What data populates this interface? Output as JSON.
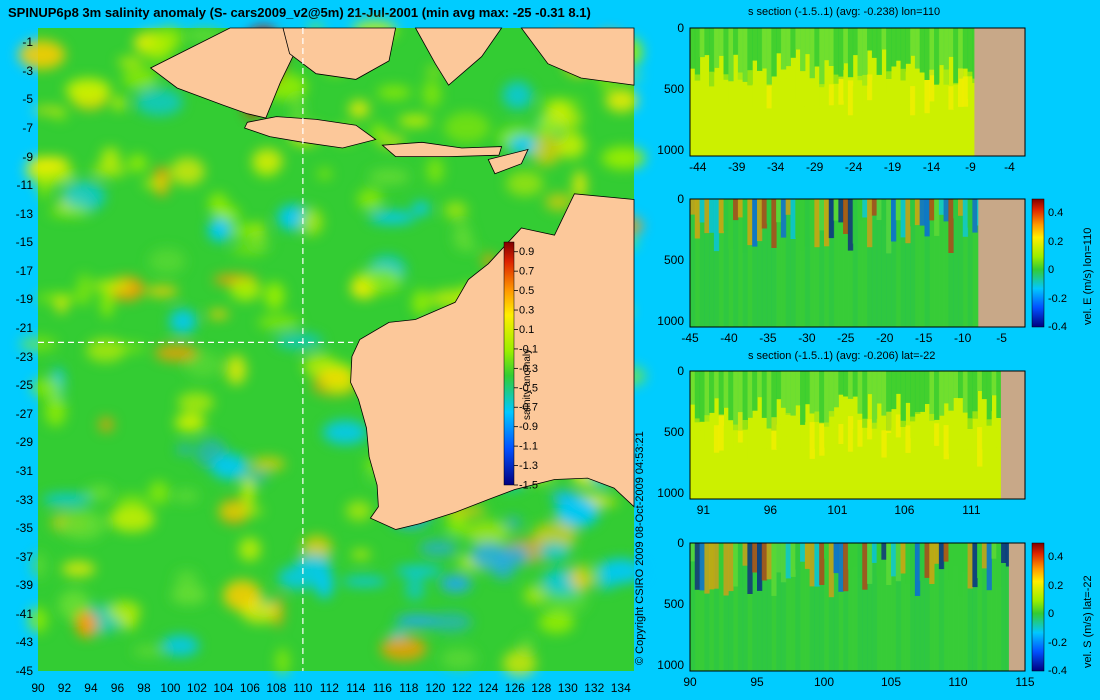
{
  "header": {
    "title": "SPINUP6p8 3m salinity anomaly (S- cars2009_v2@5m) 21-Jul-2001 (min avg max: -25 -0.31 8.1)"
  },
  "copyright": "© Copyright CSIRO 2009   08-Oct-2009 04:53:21",
  "colors": {
    "background": "#00ccff",
    "land": "#fcc89a",
    "section_land": "#c8a888",
    "ocean_base": "#33cc33",
    "crosshair": "#ffffff"
  },
  "chart_data": [
    {
      "type": "heatmap",
      "name": "map",
      "title": "SPINUP6p8 3m salinity anomaly (S- cars2009_v2@5m) 21-Jul-2001 (min avg max: -25 -0.31 8.1)",
      "xlim": [
        90,
        135
      ],
      "ylim": [
        -45,
        0
      ],
      "x_ticks": [
        "90",
        "92",
        "94",
        "96",
        "98",
        "100",
        "102",
        "104",
        "106",
        "108",
        "110",
        "112",
        "114",
        "116",
        "118",
        "120",
        "122",
        "124",
        "126",
        "128",
        "130",
        "132",
        "134"
      ],
      "y_ticks": [
        "-1",
        "-3",
        "-5",
        "-7",
        "-9",
        "-11",
        "-13",
        "-15",
        "-17",
        "-19",
        "-21",
        "-23",
        "-25",
        "-27",
        "-29",
        "-31",
        "-33",
        "-35",
        "-37",
        "-39",
        "-41",
        "-43",
        "-45"
      ],
      "crosshair": {
        "lon": 110,
        "lat": -22
      },
      "colorbar": {
        "label": "salinity anomaly",
        "range": [
          -1.5,
          1.0
        ],
        "ticks": [
          "0.9",
          "0.7",
          "0.5",
          "0.3",
          "0.1",
          "-0.1",
          "-0.3",
          "-0.5",
          "-0.7",
          "-0.9",
          "-1.1",
          "-1.3",
          "-1.5"
        ]
      }
    },
    {
      "type": "heatmap",
      "name": "salinity-section-lon110",
      "title": "s section (-1.5..1) (avg: -0.238) lon=110",
      "xlim": [
        -45,
        -2
      ],
      "ylim": [
        1050,
        0
      ],
      "x_ticks": [
        "-44",
        "-39",
        "-34",
        "-29",
        "-24",
        "-19",
        "-14",
        "-9",
        "-4"
      ],
      "y_ticks": [
        "0",
        "500",
        "1000"
      ]
    },
    {
      "type": "heatmap",
      "name": "velocity-east-lon110",
      "title": "",
      "xlim": [
        -45,
        -2
      ],
      "ylim": [
        1050,
        0
      ],
      "x_ticks": [
        "-45",
        "-40",
        "-35",
        "-30",
        "-25",
        "-20",
        "-15",
        "-10",
        "-5"
      ],
      "y_ticks": [
        "0",
        "500",
        "1000"
      ],
      "colorbar": {
        "label": "vel. E (m/s) lon=110",
        "range": [
          -0.4,
          0.5
        ],
        "ticks": [
          "0.4",
          "0.2",
          "0",
          "-0.2",
          "-0.4"
        ]
      }
    },
    {
      "type": "heatmap",
      "name": "salinity-section-lat-22",
      "title": "s section (-1.5..1) (avg: -0.206) lat=-22",
      "xlim": [
        90,
        115
      ],
      "ylim": [
        1050,
        0
      ],
      "x_ticks": [
        "91",
        "96",
        "101",
        "106",
        "111"
      ],
      "y_ticks": [
        "0",
        "500",
        "1000"
      ]
    },
    {
      "type": "heatmap",
      "name": "velocity-south-lat-22",
      "title": "",
      "xlim": [
        90,
        115
      ],
      "ylim": [
        1050,
        0
      ],
      "x_ticks": [
        "90",
        "95",
        "100",
        "105",
        "110",
        "115"
      ],
      "y_ticks": [
        "0",
        "500",
        "1000"
      ],
      "colorbar": {
        "label": "vel. S (m/s) lat=-22",
        "range": [
          -0.4,
          0.5
        ],
        "ticks": [
          "0.4",
          "0.2",
          "0",
          "-0.2",
          "-0.4"
        ]
      }
    }
  ]
}
